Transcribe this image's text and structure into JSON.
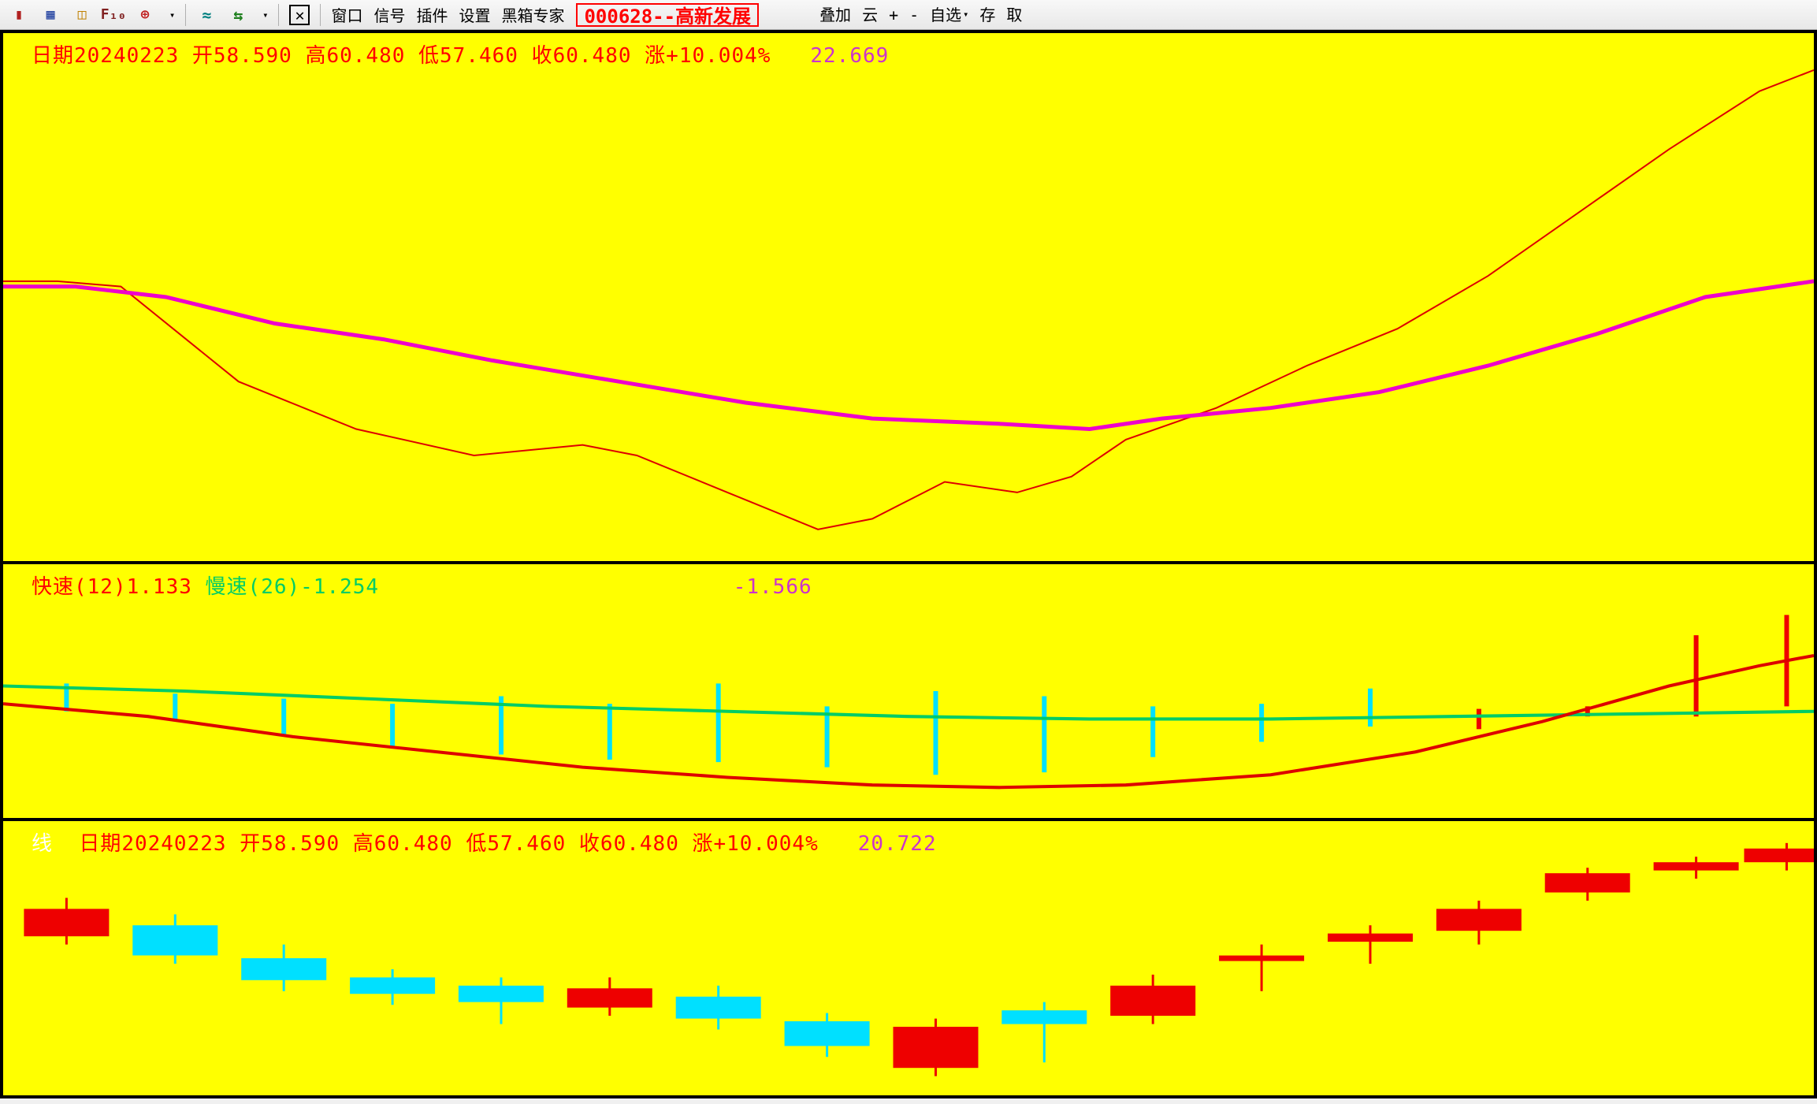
{
  "toolbar": {
    "icons": [
      {
        "name": "candlestick-icon",
        "glyph": "▮",
        "color": "#b02020"
      },
      {
        "name": "calendar-icon",
        "glyph": "▦",
        "color": "#2040a0"
      },
      {
        "name": "panel-icon",
        "glyph": "◫",
        "color": "#c08000"
      },
      {
        "name": "f10-icon",
        "glyph": "F₁₀",
        "color": "#802020"
      },
      {
        "name": "chart-style-icon",
        "glyph": "⊕",
        "color": "#c02020"
      }
    ],
    "icons2": [
      {
        "name": "indicator-icon",
        "glyph": "≈",
        "color": "#008080"
      },
      {
        "name": "indicator2-icon",
        "glyph": "⇆",
        "color": "#208020"
      }
    ],
    "close_icon": {
      "name": "close-icon",
      "glyph": "✕",
      "color": "#000"
    },
    "menus": [
      "窗口",
      "信号",
      "插件",
      "设置",
      "黑箱专家"
    ],
    "stock_code": "000628--高新发展",
    "right_menus": [
      {
        "label": "叠加",
        "name": "overlay-menu"
      },
      {
        "label": "云",
        "name": "cloud-menu"
      },
      {
        "label": "+",
        "name": "plus-button"
      },
      {
        "label": "-",
        "name": "minus-button"
      },
      {
        "label": "自选",
        "name": "favorites-menu",
        "dropdown": true
      },
      {
        "label": "存",
        "name": "save-button"
      },
      {
        "label": "取",
        "name": "load-button"
      }
    ]
  },
  "panel1": {
    "legend_parts": [
      {
        "text": "日期20240223 开58.590 高60.480 低57.460 收60.480 涨+10.004%",
        "cls": "red"
      },
      {
        "text": "   22.669",
        "cls": "magenta"
      }
    ],
    "bg": "#ffff00",
    "line_red": {
      "color": "#dd0000",
      "width": 2,
      "points": [
        [
          0,
          0.47
        ],
        [
          0.03,
          0.47
        ],
        [
          0.065,
          0.48
        ],
        [
          0.13,
          0.66
        ],
        [
          0.195,
          0.75
        ],
        [
          0.26,
          0.8
        ],
        [
          0.32,
          0.78
        ],
        [
          0.35,
          0.8
        ],
        [
          0.4,
          0.87
        ],
        [
          0.45,
          0.94
        ],
        [
          0.48,
          0.92
        ],
        [
          0.52,
          0.85
        ],
        [
          0.56,
          0.87
        ],
        [
          0.59,
          0.84
        ],
        [
          0.62,
          0.77
        ],
        [
          0.67,
          0.71
        ],
        [
          0.72,
          0.63
        ],
        [
          0.77,
          0.56
        ],
        [
          0.82,
          0.46
        ],
        [
          0.87,
          0.34
        ],
        [
          0.92,
          0.22
        ],
        [
          0.97,
          0.11
        ],
        [
          1.0,
          0.07
        ]
      ]
    },
    "line_magenta": {
      "color": "#ee00cc",
      "width": 5,
      "points": [
        [
          0,
          0.48
        ],
        [
          0.04,
          0.48
        ],
        [
          0.09,
          0.5
        ],
        [
          0.15,
          0.55
        ],
        [
          0.21,
          0.58
        ],
        [
          0.27,
          0.62
        ],
        [
          0.34,
          0.66
        ],
        [
          0.41,
          0.7
        ],
        [
          0.48,
          0.73
        ],
        [
          0.55,
          0.74
        ],
        [
          0.6,
          0.75
        ],
        [
          0.64,
          0.73
        ],
        [
          0.7,
          0.71
        ],
        [
          0.76,
          0.68
        ],
        [
          0.82,
          0.63
        ],
        [
          0.88,
          0.57
        ],
        [
          0.94,
          0.5
        ],
        [
          1.0,
          0.47
        ]
      ]
    }
  },
  "panel2": {
    "legend_parts": [
      {
        "text": "快速(12)1.133",
        "cls": "red"
      },
      {
        "text": " 慢速(26)-1.254",
        "cls": "green"
      },
      {
        "text": "                           -1.566",
        "cls": "magenta"
      }
    ],
    "bg": "#ffff00",
    "bar_color_cyan": "#00e0ff",
    "bar_color_red": "#ee0000",
    "bars": [
      {
        "x": 0.035,
        "top": 0.47,
        "bottom": 0.58,
        "color": "cyan"
      },
      {
        "x": 0.095,
        "top": 0.51,
        "bottom": 0.62,
        "color": "cyan"
      },
      {
        "x": 0.155,
        "top": 0.53,
        "bottom": 0.68,
        "color": "cyan"
      },
      {
        "x": 0.215,
        "top": 0.55,
        "bottom": 0.72,
        "color": "cyan"
      },
      {
        "x": 0.275,
        "top": 0.52,
        "bottom": 0.75,
        "color": "cyan"
      },
      {
        "x": 0.335,
        "top": 0.55,
        "bottom": 0.77,
        "color": "cyan"
      },
      {
        "x": 0.395,
        "top": 0.47,
        "bottom": 0.78,
        "color": "cyan"
      },
      {
        "x": 0.455,
        "top": 0.56,
        "bottom": 0.8,
        "color": "cyan"
      },
      {
        "x": 0.515,
        "top": 0.5,
        "bottom": 0.83,
        "color": "cyan"
      },
      {
        "x": 0.575,
        "top": 0.52,
        "bottom": 0.82,
        "color": "cyan"
      },
      {
        "x": 0.635,
        "top": 0.56,
        "bottom": 0.76,
        "color": "cyan"
      },
      {
        "x": 0.695,
        "top": 0.55,
        "bottom": 0.7,
        "color": "cyan"
      },
      {
        "x": 0.755,
        "top": 0.49,
        "bottom": 0.64,
        "color": "cyan"
      },
      {
        "x": 0.815,
        "top": 0.57,
        "bottom": 0.65,
        "color": "red"
      },
      {
        "x": 0.875,
        "top": 0.56,
        "bottom": 0.6,
        "color": "red"
      },
      {
        "x": 0.935,
        "top": 0.28,
        "bottom": 0.6,
        "color": "red"
      },
      {
        "x": 0.985,
        "top": 0.2,
        "bottom": 0.56,
        "color": "red"
      }
    ],
    "line_green": {
      "color": "#00cc66",
      "width": 4,
      "points": [
        [
          0,
          0.48
        ],
        [
          0.1,
          0.5
        ],
        [
          0.2,
          0.53
        ],
        [
          0.3,
          0.56
        ],
        [
          0.4,
          0.58
        ],
        [
          0.5,
          0.6
        ],
        [
          0.6,
          0.61
        ],
        [
          0.7,
          0.61
        ],
        [
          0.8,
          0.6
        ],
        [
          0.9,
          0.59
        ],
        [
          1.0,
          0.58
        ]
      ]
    },
    "line_red": {
      "color": "#dd0000",
      "width": 4,
      "points": [
        [
          0,
          0.55
        ],
        [
          0.08,
          0.6
        ],
        [
          0.16,
          0.68
        ],
        [
          0.24,
          0.74
        ],
        [
          0.32,
          0.8
        ],
        [
          0.4,
          0.84
        ],
        [
          0.48,
          0.87
        ],
        [
          0.55,
          0.88
        ],
        [
          0.62,
          0.87
        ],
        [
          0.7,
          0.83
        ],
        [
          0.78,
          0.74
        ],
        [
          0.85,
          0.62
        ],
        [
          0.92,
          0.48
        ],
        [
          0.97,
          0.4
        ],
        [
          1.0,
          0.36
        ]
      ]
    }
  },
  "panel3": {
    "legend_parts": [
      {
        "text": "线",
        "cls": "white"
      },
      {
        "text": "  日期20240223 开58.590 高60.480 低57.460 收60.480 涨+10.004%",
        "cls": "red"
      },
      {
        "text": "   20.722",
        "cls": "magenta"
      }
    ],
    "bg": "#ffff00",
    "bar_color_cyan": "#00e0ff",
    "bar_color_red": "#ee0000",
    "bar_width": 0.047,
    "wick_color_cyan": "#00e0ff",
    "wick_color_red": "#ee0000",
    "bars": [
      {
        "x": 0.035,
        "body": [
          0.32,
          0.42
        ],
        "wick": [
          0.28,
          0.45
        ],
        "color": "red"
      },
      {
        "x": 0.095,
        "body": [
          0.38,
          0.49
        ],
        "wick": [
          0.34,
          0.52
        ],
        "color": "cyan"
      },
      {
        "x": 0.155,
        "body": [
          0.5,
          0.58
        ],
        "wick": [
          0.45,
          0.62
        ],
        "color": "cyan"
      },
      {
        "x": 0.215,
        "body": [
          0.57,
          0.63
        ],
        "wick": [
          0.54,
          0.67
        ],
        "color": "cyan"
      },
      {
        "x": 0.275,
        "body": [
          0.6,
          0.66
        ],
        "wick": [
          0.57,
          0.74
        ],
        "color": "cyan"
      },
      {
        "x": 0.335,
        "body": [
          0.61,
          0.68
        ],
        "wick": [
          0.57,
          0.71
        ],
        "color": "red"
      },
      {
        "x": 0.395,
        "body": [
          0.64,
          0.72
        ],
        "wick": [
          0.6,
          0.76
        ],
        "color": "cyan"
      },
      {
        "x": 0.455,
        "body": [
          0.73,
          0.82
        ],
        "wick": [
          0.7,
          0.86
        ],
        "color": "cyan"
      },
      {
        "x": 0.515,
        "body": [
          0.75,
          0.9
        ],
        "wick": [
          0.72,
          0.93
        ],
        "color": "red"
      },
      {
        "x": 0.575,
        "body": [
          0.69,
          0.74
        ],
        "wick": [
          0.66,
          0.88
        ],
        "color": "cyan"
      },
      {
        "x": 0.635,
        "body": [
          0.6,
          0.71
        ],
        "wick": [
          0.56,
          0.74
        ],
        "color": "red"
      },
      {
        "x": 0.695,
        "body": [
          0.49,
          0.51
        ],
        "wick": [
          0.45,
          0.62
        ],
        "color": "red"
      },
      {
        "x": 0.755,
        "body": [
          0.41,
          0.44
        ],
        "wick": [
          0.38,
          0.52
        ],
        "color": "red"
      },
      {
        "x": 0.815,
        "body": [
          0.32,
          0.4
        ],
        "wick": [
          0.29,
          0.45
        ],
        "color": "red"
      },
      {
        "x": 0.875,
        "body": [
          0.19,
          0.26
        ],
        "wick": [
          0.17,
          0.29
        ],
        "color": "red"
      },
      {
        "x": 0.935,
        "body": [
          0.15,
          0.18
        ],
        "wick": [
          0.13,
          0.21
        ],
        "color": "red"
      },
      {
        "x": 0.985,
        "body": [
          0.1,
          0.15
        ],
        "wick": [
          0.08,
          0.18
        ],
        "color": "red"
      }
    ]
  }
}
